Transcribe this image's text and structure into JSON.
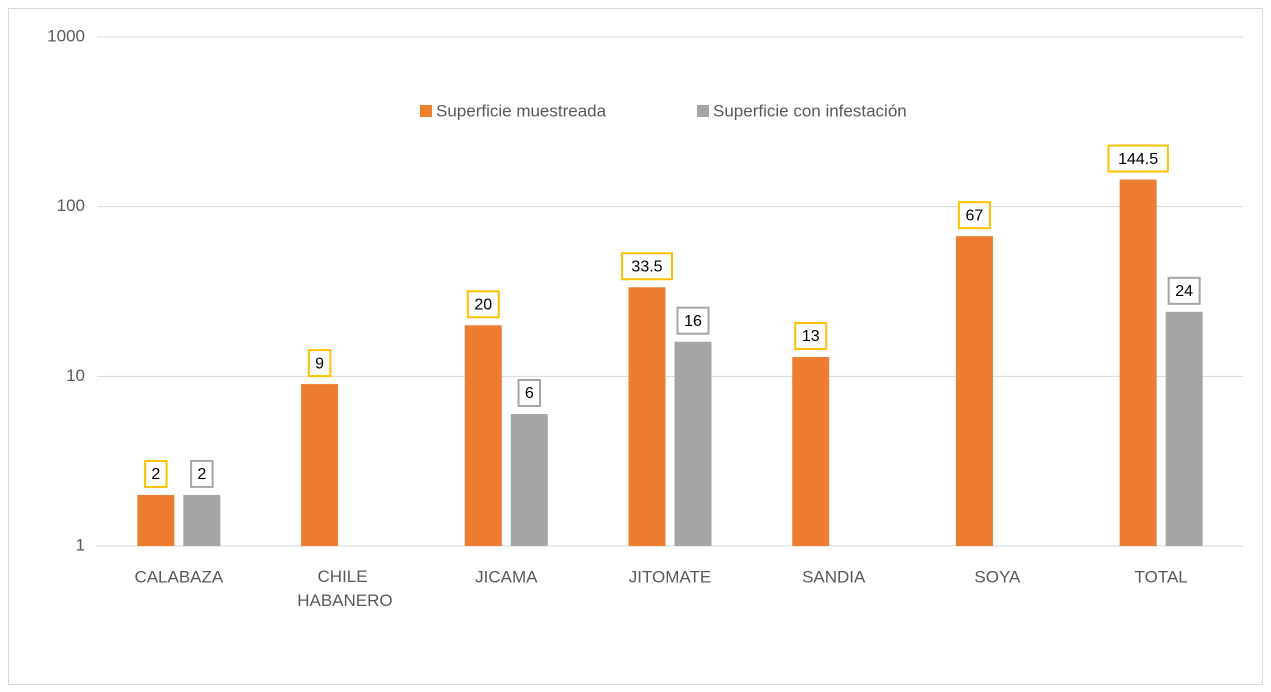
{
  "chart_data": {
    "type": "bar",
    "log_scale": true,
    "grid": true,
    "legend": "top",
    "categories": [
      "CALABAZA",
      "CHILE HABANERO",
      "JICAMA",
      "JITOMATE",
      "SANDIA",
      "SOYA",
      "TOTAL"
    ],
    "series": [
      {
        "name": "Superficie muestreada",
        "color": "#ed7d31",
        "label_border": "#ffc000",
        "values": [
          2,
          9,
          20,
          33.5,
          13,
          67,
          144.5
        ]
      },
      {
        "name": "Superficie con infestación",
        "color": "#a5a5a5",
        "label_border": "#a5a5a5",
        "values": [
          2,
          null,
          6,
          16,
          null,
          null,
          24
        ]
      }
    ],
    "ylim": [
      1,
      1000
    ],
    "yticks": [
      1,
      10,
      100,
      1000
    ]
  }
}
